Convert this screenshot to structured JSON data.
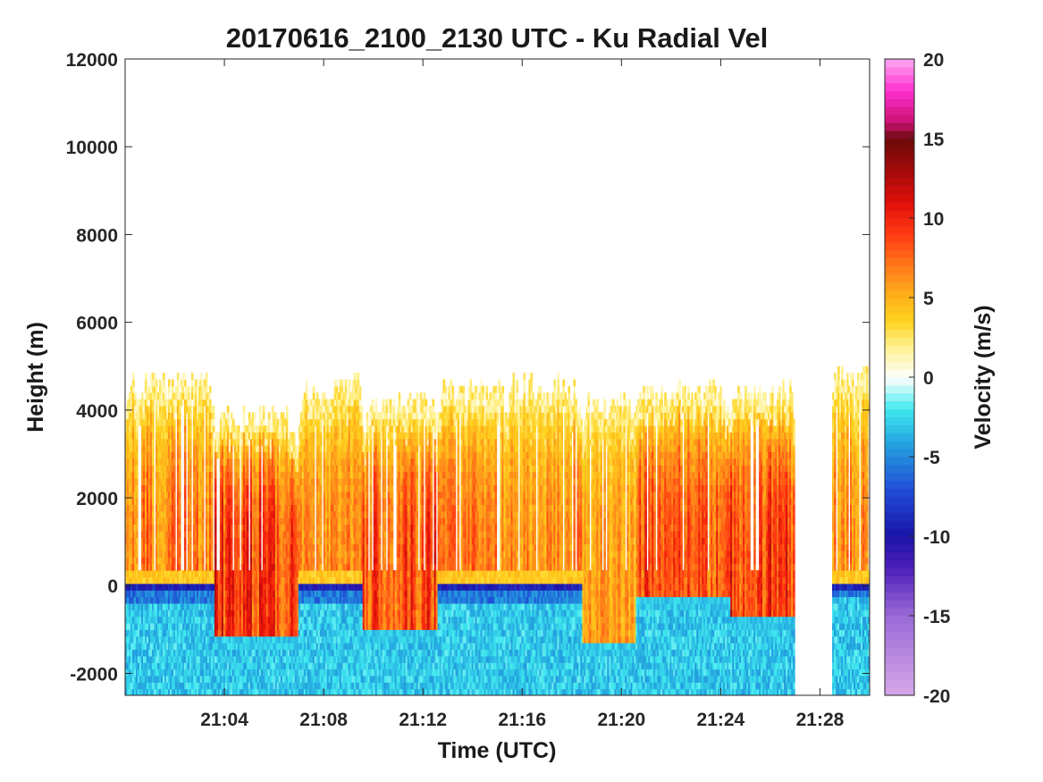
{
  "chart_data": {
    "type": "heatmap",
    "title": "20170616_2100_2130 UTC - Ku Radial Vel",
    "xlabel": "Time (UTC)",
    "ylabel": "Height (m)",
    "xlim": [
      "21:00",
      "21:30"
    ],
    "ylim": [
      -2500,
      12000
    ],
    "x_ticks": [
      "21:04",
      "21:08",
      "21:12",
      "21:16",
      "21:20",
      "21:24",
      "21:28"
    ],
    "y_ticks": [
      "-2000",
      "0",
      "2000",
      "4000",
      "6000",
      "8000",
      "10000",
      "12000"
    ],
    "colorbar": {
      "label": "Velocity (m/s)",
      "range": [
        -20,
        20
      ],
      "ticks": [
        "-20",
        "-15",
        "-10",
        "-5",
        "0",
        "5",
        "10",
        "15",
        "20"
      ]
    },
    "segments": [
      {
        "start": "21:00.0",
        "end": "21:03.6",
        "top": 4500,
        "surface": -300,
        "peak_velocity": 9
      },
      {
        "start": "21:03.6",
        "end": "21:07.0",
        "top": 3700,
        "surface": -1300,
        "peak_velocity": 12
      },
      {
        "start": "21:07.0",
        "end": "21:09.6",
        "top": 4400,
        "surface": -300,
        "peak_velocity": 8
      },
      {
        "start": "21:09.6",
        "end": "21:12.6",
        "top": 4000,
        "surface": -1200,
        "peak_velocity": 11
      },
      {
        "start": "21:12.6",
        "end": "21:15.4",
        "top": 4300,
        "surface": -300,
        "peak_velocity": 9
      },
      {
        "start": "21:15.4",
        "end": "21:18.4",
        "top": 4400,
        "surface": -300,
        "peak_velocity": 8
      },
      {
        "start": "21:18.4",
        "end": "21:20.6",
        "top": 4000,
        "surface": -1500,
        "peak_velocity": 7
      },
      {
        "start": "21:20.6",
        "end": "21:24.4",
        "top": 4300,
        "surface": -500,
        "peak_velocity": 11
      },
      {
        "start": "21:24.4",
        "end": "21:27.0",
        "top": 4300,
        "surface": -900,
        "peak_velocity": 12
      },
      {
        "start": "21:28.5",
        "end": "21:30.0",
        "top": 4600,
        "surface": -200,
        "peak_velocity": 8
      }
    ]
  }
}
